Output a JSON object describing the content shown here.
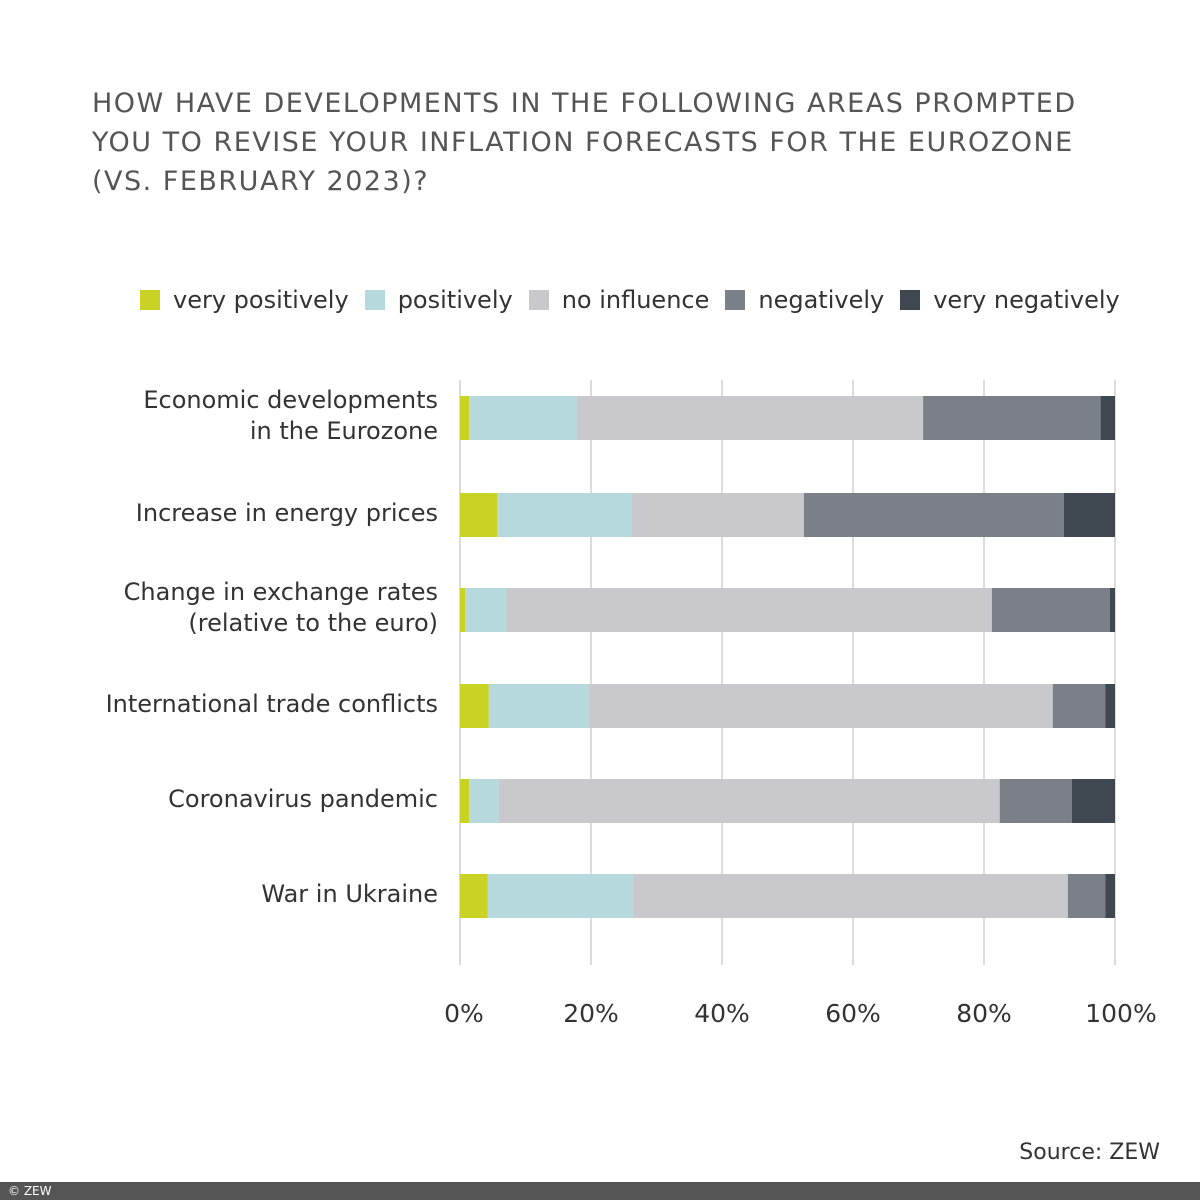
{
  "chart_data": {
    "type": "bar",
    "orientation": "horizontal",
    "stacked": true,
    "title": "HOW HAVE DEVELOPMENTS IN THE FOLLOWING AREAS PROMPTED YOU TO REVISE YOUR INFLATION FORECASTS FOR THE EUROZONE (VS. FEBRUARY 2023)?",
    "categories": [
      "Economic developments\nin the Eurozone",
      "Increase in energy prices",
      "Change in exchange rates\n(relative to the euro)",
      "International trade conflicts",
      "Coronavirus pandemic",
      "War in Ukraine"
    ],
    "series": [
      {
        "name": "very positively",
        "color": "#c8d324",
        "values": [
          1.4,
          5.7,
          0.8,
          4.4,
          1.4,
          4.2
        ]
      },
      {
        "name": "positively",
        "color": "#b6d9de",
        "values": [
          16.4,
          20.5,
          6.3,
          15.2,
          4.5,
          22.2
        ]
      },
      {
        "name": "no influence",
        "color": "#c9c9cd",
        "values": [
          52.9,
          26.3,
          74.1,
          70.9,
          76.5,
          66.4
        ]
      },
      {
        "name": "negatively",
        "color": "#7b7f87",
        "values": [
          27.1,
          39.7,
          18.0,
          8.0,
          11.0,
          5.7
        ]
      },
      {
        "name": "very negatively",
        "color": "#3f4851",
        "values": [
          2.2,
          7.8,
          0.8,
          1.5,
          6.6,
          1.5
        ]
      }
    ],
    "xlim": [
      0,
      100
    ],
    "xticks": [
      "0%",
      "20%",
      "40%",
      "60%",
      "80%",
      "100%"
    ],
    "grid": true,
    "legend_position": "top"
  },
  "source": "Source: ZEW",
  "copyright": "© ZEW"
}
